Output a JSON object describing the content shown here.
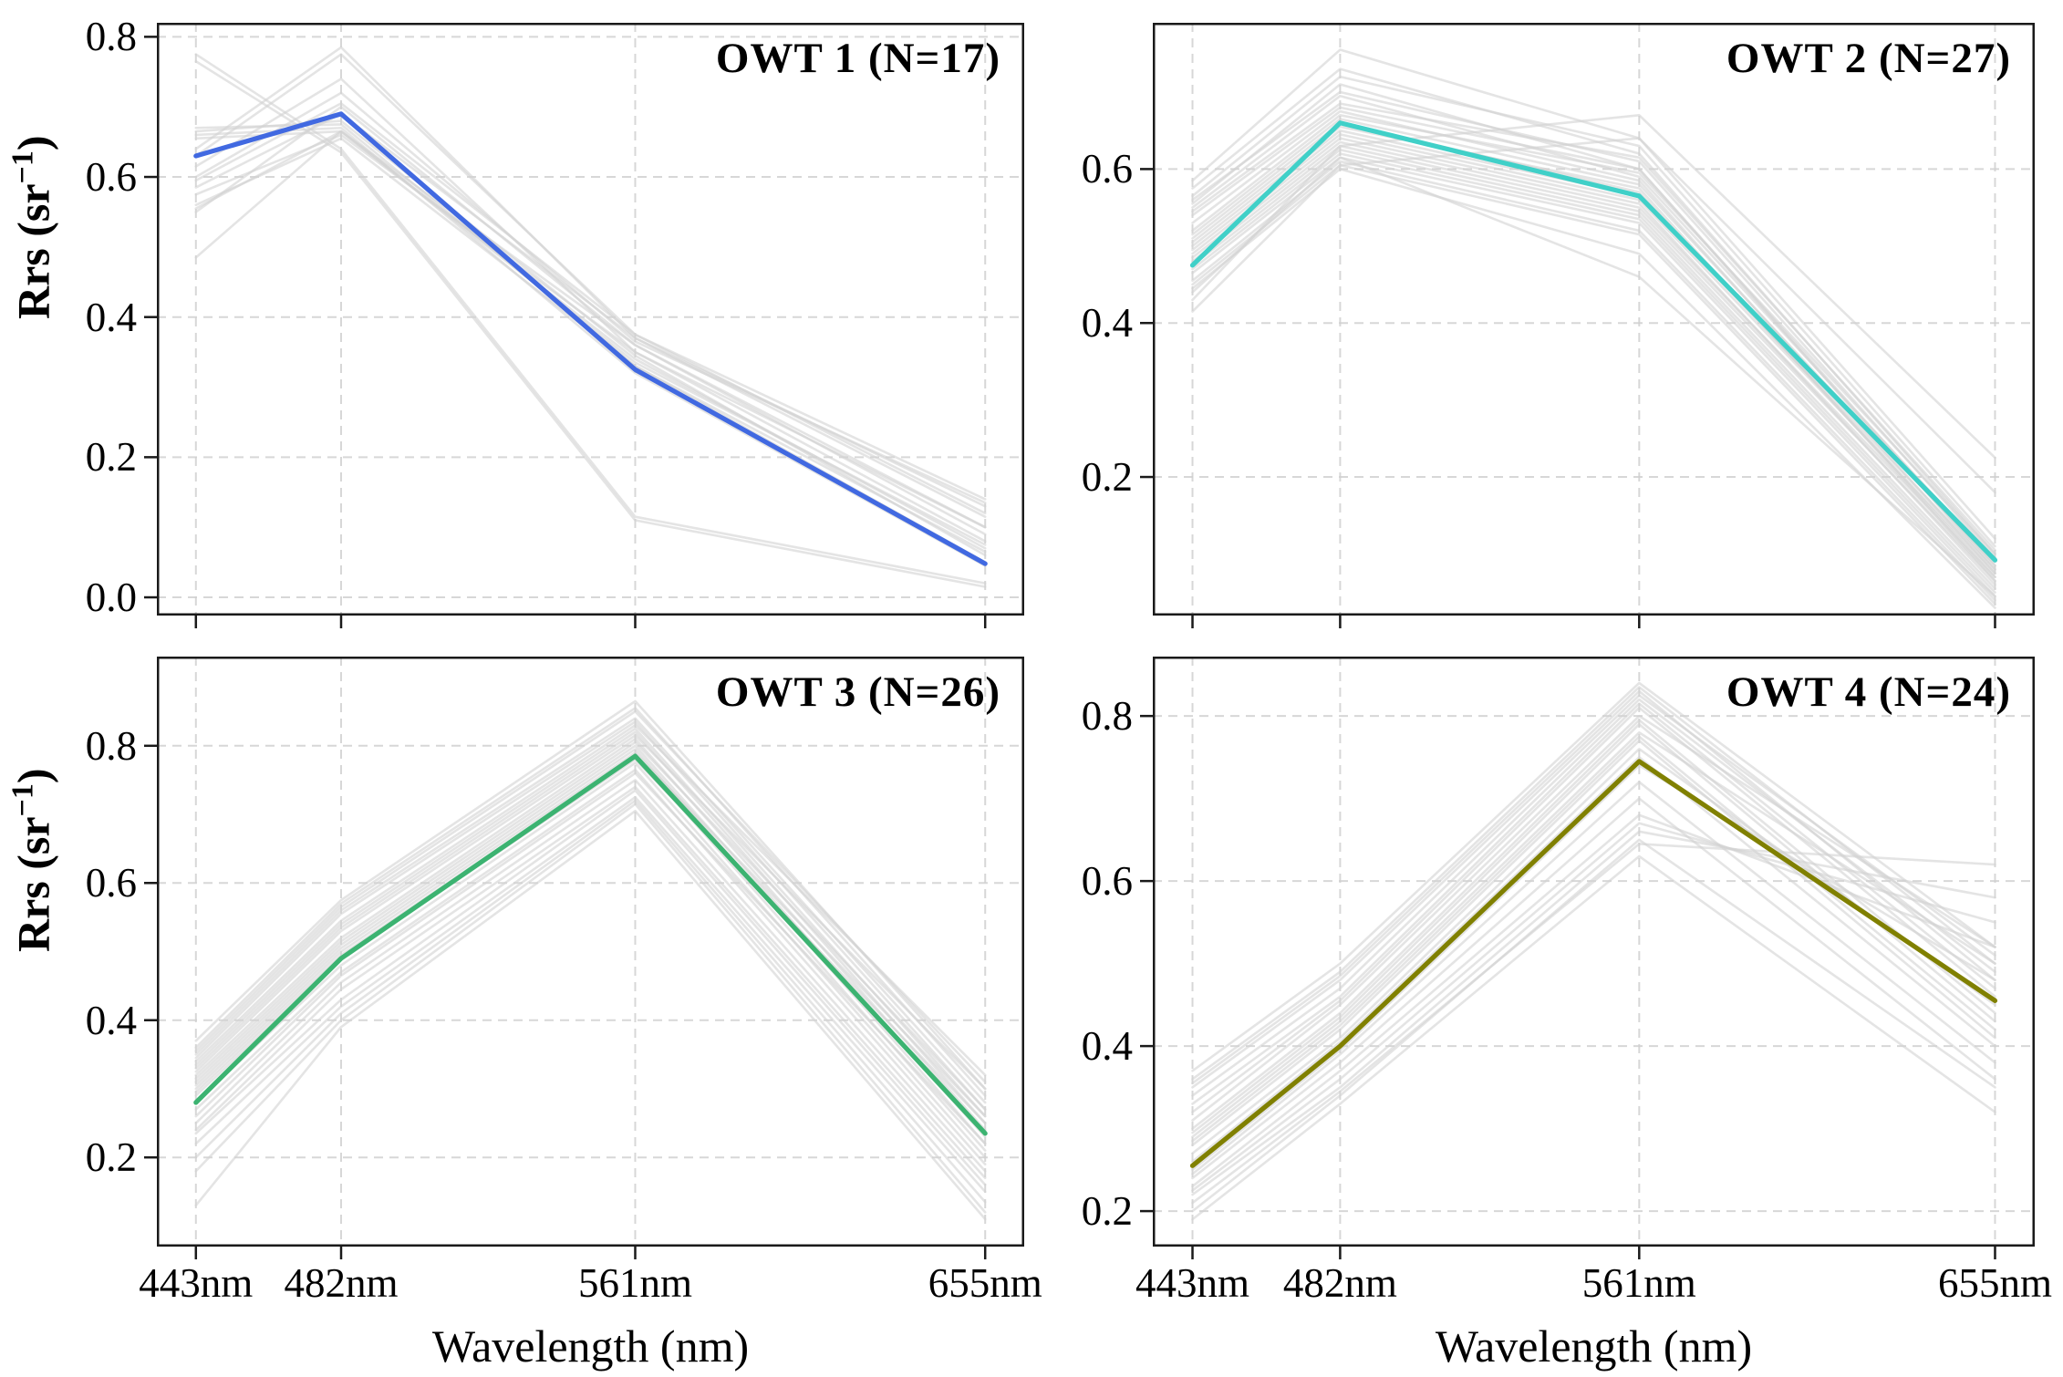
{
  "figure": {
    "background": "#ffffff",
    "y_axis_label_parts": {
      "pre": "Rrs (sr",
      "sup": "−1",
      "post": ")"
    }
  },
  "style_colors": {
    "owt1_mean": "#4169e1",
    "owt2_mean": "#40d0c8",
    "owt3_mean": "#3cb371",
    "owt4_mean": "#808000",
    "member_gray": "#d2d2d2",
    "gridline": "#d0d0d0",
    "spine": "#1a1a1a"
  },
  "chart_data": [
    {
      "type": "line",
      "title": "OWT 1 (N=17)",
      "xlabel": "Wavelength (nm)",
      "ylabel": "Rrs (sr⁻¹)",
      "x": [
        443,
        482,
        561,
        655
      ],
      "x_tick_labels": [
        "443nm",
        "482nm",
        "561nm",
        "655nm"
      ],
      "y_ticks": [
        0.0,
        0.2,
        0.4,
        0.6,
        0.8
      ],
      "ylim": [
        -0.026,
        0.82
      ],
      "mean_color": "#4169e1",
      "mean": [
        0.63,
        0.69,
        0.325,
        0.048
      ],
      "members": [
        [
          0.775,
          0.64,
          0.115,
          0.02
        ],
        [
          0.765,
          0.635,
          0.11,
          0.015
        ],
        [
          0.67,
          0.675,
          0.33,
          0.05
        ],
        [
          0.665,
          0.68,
          0.345,
          0.06
        ],
        [
          0.66,
          0.67,
          0.32,
          0.045
        ],
        [
          0.655,
          0.665,
          0.335,
          0.075
        ],
        [
          0.64,
          0.785,
          0.37,
          0.13
        ],
        [
          0.63,
          0.775,
          0.375,
          0.14
        ],
        [
          0.615,
          0.74,
          0.35,
          0.1
        ],
        [
          0.6,
          0.72,
          0.365,
          0.135
        ],
        [
          0.595,
          0.705,
          0.375,
          0.12
        ],
        [
          0.585,
          0.69,
          0.37,
          0.115
        ],
        [
          0.575,
          0.66,
          0.35,
          0.08
        ],
        [
          0.56,
          0.655,
          0.33,
          0.065
        ],
        [
          0.555,
          0.665,
          0.34,
          0.07
        ],
        [
          0.55,
          0.7,
          0.36,
          0.09
        ],
        [
          0.485,
          0.665,
          0.36,
          0.1
        ]
      ]
    },
    {
      "type": "line",
      "title": "OWT 2 (N=27)",
      "xlabel": "Wavelength (nm)",
      "ylabel": "Rrs (sr⁻¹)",
      "x": [
        443,
        482,
        561,
        655
      ],
      "x_tick_labels": [
        "443nm",
        "482nm",
        "561nm",
        "655nm"
      ],
      "y_ticks": [
        0.2,
        0.4,
        0.6
      ],
      "ylim": [
        0.02,
        0.79
      ],
      "mean_color": "#40d0c8",
      "mean": [
        0.475,
        0.66,
        0.565,
        0.092
      ],
      "members": [
        [
          0.585,
          0.755,
          0.64,
          0.12
        ],
        [
          0.575,
          0.73,
          0.62,
          0.1
        ],
        [
          0.565,
          0.72,
          0.63,
          0.11
        ],
        [
          0.56,
          0.7,
          0.61,
          0.095
        ],
        [
          0.555,
          0.71,
          0.6,
          0.085
        ],
        [
          0.55,
          0.695,
          0.59,
          0.09
        ],
        [
          0.545,
          0.685,
          0.615,
          0.105
        ],
        [
          0.54,
          0.68,
          0.6,
          0.08
        ],
        [
          0.53,
          0.675,
          0.585,
          0.075
        ],
        [
          0.52,
          0.67,
          0.595,
          0.1
        ],
        [
          0.515,
          0.665,
          0.58,
          0.085
        ],
        [
          0.51,
          0.66,
          0.57,
          0.07
        ],
        [
          0.505,
          0.655,
          0.575,
          0.065
        ],
        [
          0.5,
          0.65,
          0.565,
          0.08
        ],
        [
          0.495,
          0.645,
          0.56,
          0.075
        ],
        [
          0.49,
          0.64,
          0.555,
          0.06
        ],
        [
          0.485,
          0.635,
          0.55,
          0.07
        ],
        [
          0.48,
          0.63,
          0.545,
          0.065
        ],
        [
          0.475,
          0.625,
          0.54,
          0.055
        ],
        [
          0.47,
          0.62,
          0.535,
          0.05
        ],
        [
          0.465,
          0.615,
          0.53,
          0.045
        ],
        [
          0.455,
          0.61,
          0.52,
          0.04
        ],
        [
          0.45,
          0.605,
          0.515,
          0.035
        ],
        [
          0.445,
          0.6,
          0.49,
          0.03
        ],
        [
          0.44,
          0.615,
          0.46,
          0.045
        ],
        [
          0.43,
          0.63,
          0.67,
          0.225
        ],
        [
          0.415,
          0.605,
          0.64,
          0.18
        ]
      ]
    },
    {
      "type": "line",
      "title": "OWT 3 (N=26)",
      "xlabel": "Wavelength (nm)",
      "ylabel": "Rrs (sr⁻¹)",
      "x": [
        443,
        482,
        561,
        655
      ],
      "x_tick_labels": [
        "443nm",
        "482nm",
        "561nm",
        "655nm"
      ],
      "y_ticks": [
        0.2,
        0.4,
        0.6,
        0.8
      ],
      "ylim": [
        0.07,
        0.93
      ],
      "mean_color": "#3cb371",
      "mean": [
        0.28,
        0.49,
        0.785,
        0.235
      ],
      "members": [
        [
          0.37,
          0.575,
          0.865,
          0.3
        ],
        [
          0.36,
          0.57,
          0.855,
          0.29
        ],
        [
          0.355,
          0.565,
          0.85,
          0.31
        ],
        [
          0.35,
          0.56,
          0.84,
          0.28
        ],
        [
          0.345,
          0.555,
          0.835,
          0.27
        ],
        [
          0.34,
          0.545,
          0.83,
          0.32
        ],
        [
          0.335,
          0.54,
          0.825,
          0.26
        ],
        [
          0.33,
          0.535,
          0.82,
          0.25
        ],
        [
          0.325,
          0.53,
          0.815,
          0.3
        ],
        [
          0.32,
          0.52,
          0.81,
          0.24
        ],
        [
          0.315,
          0.515,
          0.805,
          0.27
        ],
        [
          0.31,
          0.51,
          0.8,
          0.23
        ],
        [
          0.305,
          0.505,
          0.795,
          0.22
        ],
        [
          0.3,
          0.5,
          0.79,
          0.26
        ],
        [
          0.295,
          0.495,
          0.785,
          0.21
        ],
        [
          0.29,
          0.49,
          0.78,
          0.25
        ],
        [
          0.28,
          0.48,
          0.775,
          0.2
        ],
        [
          0.27,
          0.47,
          0.765,
          0.19
        ],
        [
          0.26,
          0.465,
          0.76,
          0.22
        ],
        [
          0.25,
          0.455,
          0.75,
          0.18
        ],
        [
          0.24,
          0.445,
          0.74,
          0.17
        ],
        [
          0.235,
          0.43,
          0.735,
          0.16
        ],
        [
          0.22,
          0.42,
          0.725,
          0.15
        ],
        [
          0.2,
          0.41,
          0.72,
          0.135
        ],
        [
          0.18,
          0.4,
          0.715,
          0.12
        ],
        [
          0.13,
          0.39,
          0.705,
          0.11
        ]
      ]
    },
    {
      "type": "line",
      "title": "OWT 4 (N=24)",
      "xlabel": "Wavelength (nm)",
      "ylabel": "Rrs (sr⁻¹)",
      "x": [
        443,
        482,
        561,
        655
      ],
      "x_tick_labels": [
        "443nm",
        "482nm",
        "561nm",
        "655nm"
      ],
      "y_ticks": [
        0.2,
        0.4,
        0.6,
        0.8
      ],
      "ylim": [
        0.157,
        0.872
      ],
      "mean_color": "#808000",
      "mean": [
        0.255,
        0.4,
        0.745,
        0.455
      ],
      "members": [
        [
          0.37,
          0.5,
          0.84,
          0.52
        ],
        [
          0.36,
          0.49,
          0.835,
          0.5
        ],
        [
          0.355,
          0.485,
          0.83,
          0.48
        ],
        [
          0.35,
          0.48,
          0.825,
          0.51
        ],
        [
          0.34,
          0.47,
          0.82,
          0.49
        ],
        [
          0.33,
          0.46,
          0.815,
          0.47
        ],
        [
          0.32,
          0.455,
          0.81,
          0.46
        ],
        [
          0.31,
          0.45,
          0.8,
          0.52
        ],
        [
          0.3,
          0.44,
          0.795,
          0.44
        ],
        [
          0.295,
          0.435,
          0.79,
          0.43
        ],
        [
          0.29,
          0.43,
          0.78,
          0.5
        ],
        [
          0.285,
          0.425,
          0.775,
          0.42
        ],
        [
          0.28,
          0.42,
          0.77,
          0.41
        ],
        [
          0.27,
          0.41,
          0.76,
          0.45
        ],
        [
          0.26,
          0.405,
          0.75,
          0.4
        ],
        [
          0.25,
          0.395,
          0.74,
          0.48
        ],
        [
          0.245,
          0.39,
          0.72,
          0.38
        ],
        [
          0.24,
          0.38,
          0.7,
          0.36
        ],
        [
          0.23,
          0.37,
          0.68,
          0.52
        ],
        [
          0.225,
          0.36,
          0.67,
          0.55
        ],
        [
          0.22,
          0.35,
          0.66,
          0.58
        ],
        [
          0.21,
          0.345,
          0.645,
          0.62
        ],
        [
          0.2,
          0.34,
          0.65,
          0.35
        ],
        [
          0.19,
          0.33,
          0.63,
          0.32
        ]
      ]
    }
  ]
}
